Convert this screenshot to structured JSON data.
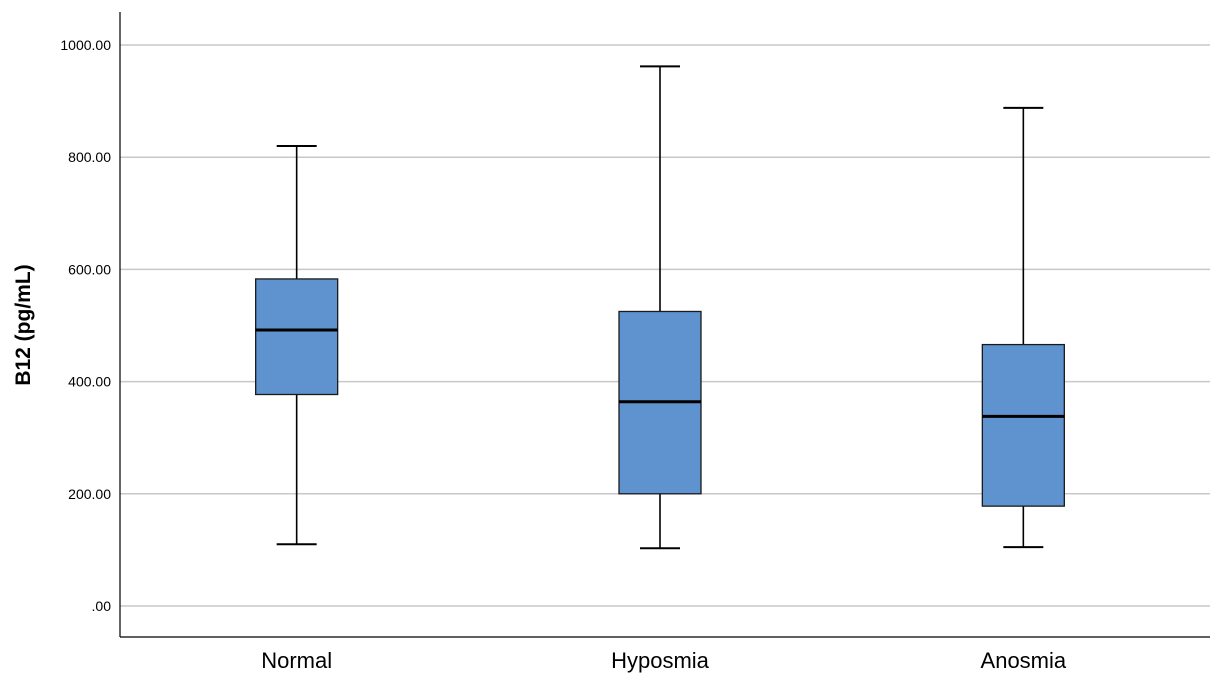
{
  "chart_data": {
    "type": "boxplot",
    "ylabel": "B12 (pg/mL)",
    "xlabel": "",
    "ylim": [
      0,
      1000
    ],
    "yticks": [
      0,
      200,
      400,
      600,
      800,
      1000
    ],
    "ytick_labels": [
      ".00",
      "200.00",
      "400.00",
      "600.00",
      "800.00",
      "1000.00"
    ],
    "grid": true,
    "box_color": "#5f93cf",
    "categories": [
      "Normal",
      "Hyposmia",
      "Anosmia"
    ],
    "boxes": [
      {
        "category": "Normal",
        "min": 110,
        "q1": 377,
        "median": 492,
        "q3": 583,
        "max": 820
      },
      {
        "category": "Hyposmia",
        "min": 103,
        "q1": 200,
        "median": 364,
        "q3": 525,
        "max": 962
      },
      {
        "category": "Anosmia",
        "min": 105,
        "q1": 178,
        "median": 338,
        "q3": 466,
        "max": 888
      }
    ]
  }
}
